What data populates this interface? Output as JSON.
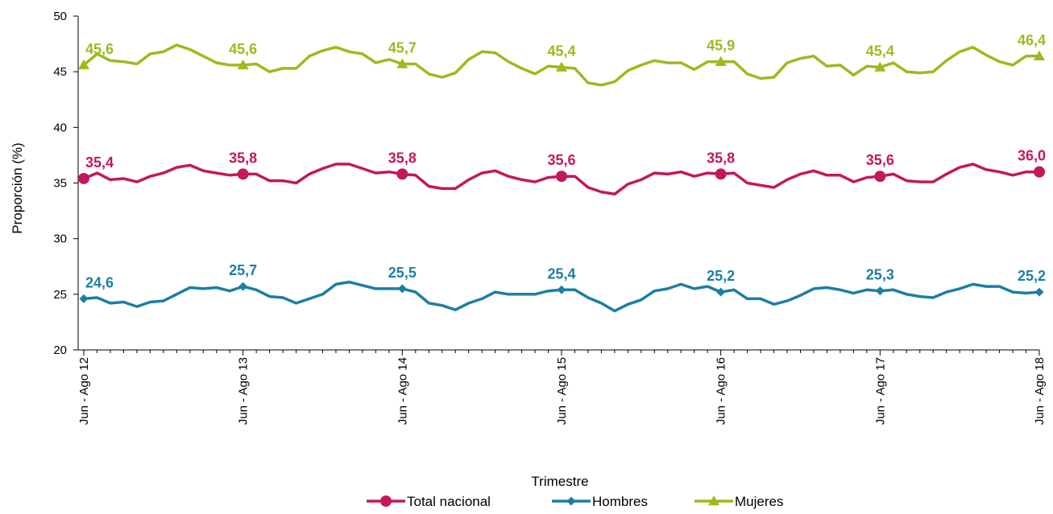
{
  "chart_data": {
    "type": "line",
    "title": "",
    "xlabel": "Trimestre",
    "ylabel": "Proporción (%)",
    "ylim": [
      20,
      50
    ],
    "yticks": [
      "20",
      "25",
      "30",
      "35",
      "40",
      "45",
      "50"
    ],
    "grid": false,
    "legend_position": "bottom",
    "x_tick_labels": [
      {
        "index": 0,
        "label": "Jun - Ago 12"
      },
      {
        "index": 12,
        "label": "Jun - Ago 13"
      },
      {
        "index": 24,
        "label": "Jun - Ago 14"
      },
      {
        "index": 36,
        "label": "Jun - Ago 15"
      },
      {
        "index": 48,
        "label": "Jun - Ago 16"
      },
      {
        "index": 60,
        "label": "Jun - Ago 17"
      },
      {
        "index": 72,
        "label": "Jun - Ago 18"
      }
    ],
    "series": [
      {
        "name": "Total nacional",
        "color": "#C3185C",
        "marker": "circle",
        "values": [
          35.4,
          35.9,
          35.3,
          35.4,
          35.1,
          35.6,
          35.9,
          36.4,
          36.6,
          36.1,
          35.9,
          35.7,
          35.8,
          35.8,
          35.2,
          35.2,
          35.0,
          35.8,
          36.3,
          36.7,
          36.7,
          36.3,
          35.9,
          36.0,
          35.8,
          35.7,
          34.7,
          34.5,
          34.5,
          35.3,
          35.9,
          36.1,
          35.6,
          35.3,
          35.1,
          35.5,
          35.6,
          35.6,
          34.6,
          34.2,
          34.0,
          34.9,
          35.3,
          35.9,
          35.8,
          36.0,
          35.6,
          35.9,
          35.8,
          35.9,
          35.0,
          34.8,
          34.6,
          35.3,
          35.8,
          36.1,
          35.7,
          35.7,
          35.1,
          35.5,
          35.6,
          35.8,
          35.2,
          35.1,
          35.1,
          35.8,
          36.4,
          36.7,
          36.2,
          36.0,
          35.7,
          36.0,
          36.0
        ],
        "labels": [
          {
            "index": 0,
            "text": "35,4"
          },
          {
            "index": 12,
            "text": "35,8"
          },
          {
            "index": 24,
            "text": "35,8"
          },
          {
            "index": 36,
            "text": "35,6"
          },
          {
            "index": 48,
            "text": "35,8"
          },
          {
            "index": 60,
            "text": "35,6"
          },
          {
            "index": 72,
            "text": "36,0"
          }
        ]
      },
      {
        "name": "Hombres",
        "color": "#1B7FA3",
        "marker": "diamond",
        "values": [
          24.6,
          24.7,
          24.2,
          24.3,
          23.9,
          24.3,
          24.4,
          25.0,
          25.6,
          25.5,
          25.6,
          25.3,
          25.7,
          25.4,
          24.8,
          24.7,
          24.2,
          24.6,
          25.0,
          25.9,
          26.1,
          25.8,
          25.5,
          25.5,
          25.5,
          25.2,
          24.2,
          24.0,
          23.6,
          24.2,
          24.6,
          25.2,
          25.0,
          25.0,
          25.0,
          25.3,
          25.4,
          25.4,
          24.7,
          24.2,
          23.5,
          24.1,
          24.5,
          25.3,
          25.5,
          25.9,
          25.5,
          25.7,
          25.2,
          25.4,
          24.6,
          24.6,
          24.1,
          24.4,
          24.9,
          25.5,
          25.6,
          25.4,
          25.1,
          25.4,
          25.3,
          25.4,
          25.0,
          24.8,
          24.7,
          25.2,
          25.5,
          25.9,
          25.7,
          25.7,
          25.2,
          25.1,
          25.2
        ],
        "labels": [
          {
            "index": 0,
            "text": "24,6"
          },
          {
            "index": 12,
            "text": "25,7"
          },
          {
            "index": 24,
            "text": "25,5"
          },
          {
            "index": 36,
            "text": "25,4"
          },
          {
            "index": 48,
            "text": "25,2"
          },
          {
            "index": 60,
            "text": "25,3"
          },
          {
            "index": 72,
            "text": "25,2"
          }
        ]
      },
      {
        "name": "Mujeres",
        "color": "#9BBB1E",
        "marker": "triangle",
        "values": [
          45.6,
          46.6,
          46.0,
          45.9,
          45.7,
          46.6,
          46.8,
          47.4,
          47.0,
          46.4,
          45.8,
          45.6,
          45.6,
          45.7,
          45.0,
          45.3,
          45.3,
          46.4,
          46.9,
          47.2,
          46.8,
          46.6,
          45.8,
          46.1,
          45.7,
          45.7,
          44.8,
          44.5,
          44.9,
          46.1,
          46.8,
          46.7,
          45.9,
          45.3,
          44.8,
          45.5,
          45.4,
          45.3,
          44.0,
          43.8,
          44.1,
          45.1,
          45.6,
          46.0,
          45.8,
          45.8,
          45.2,
          45.9,
          45.9,
          45.9,
          44.8,
          44.4,
          44.5,
          45.8,
          46.2,
          46.4,
          45.5,
          45.6,
          44.7,
          45.5,
          45.4,
          45.8,
          45.0,
          44.9,
          45.0,
          46.0,
          46.8,
          47.2,
          46.5,
          45.9,
          45.6,
          46.4,
          46.4
        ],
        "labels": [
          {
            "index": 0,
            "text": "45,6"
          },
          {
            "index": 12,
            "text": "45,6"
          },
          {
            "index": 24,
            "text": "45,7"
          },
          {
            "index": 36,
            "text": "45,4"
          },
          {
            "index": 48,
            "text": "45,9"
          },
          {
            "index": 60,
            "text": "45,4"
          },
          {
            "index": 72,
            "text": "46,4"
          }
        ]
      }
    ]
  }
}
